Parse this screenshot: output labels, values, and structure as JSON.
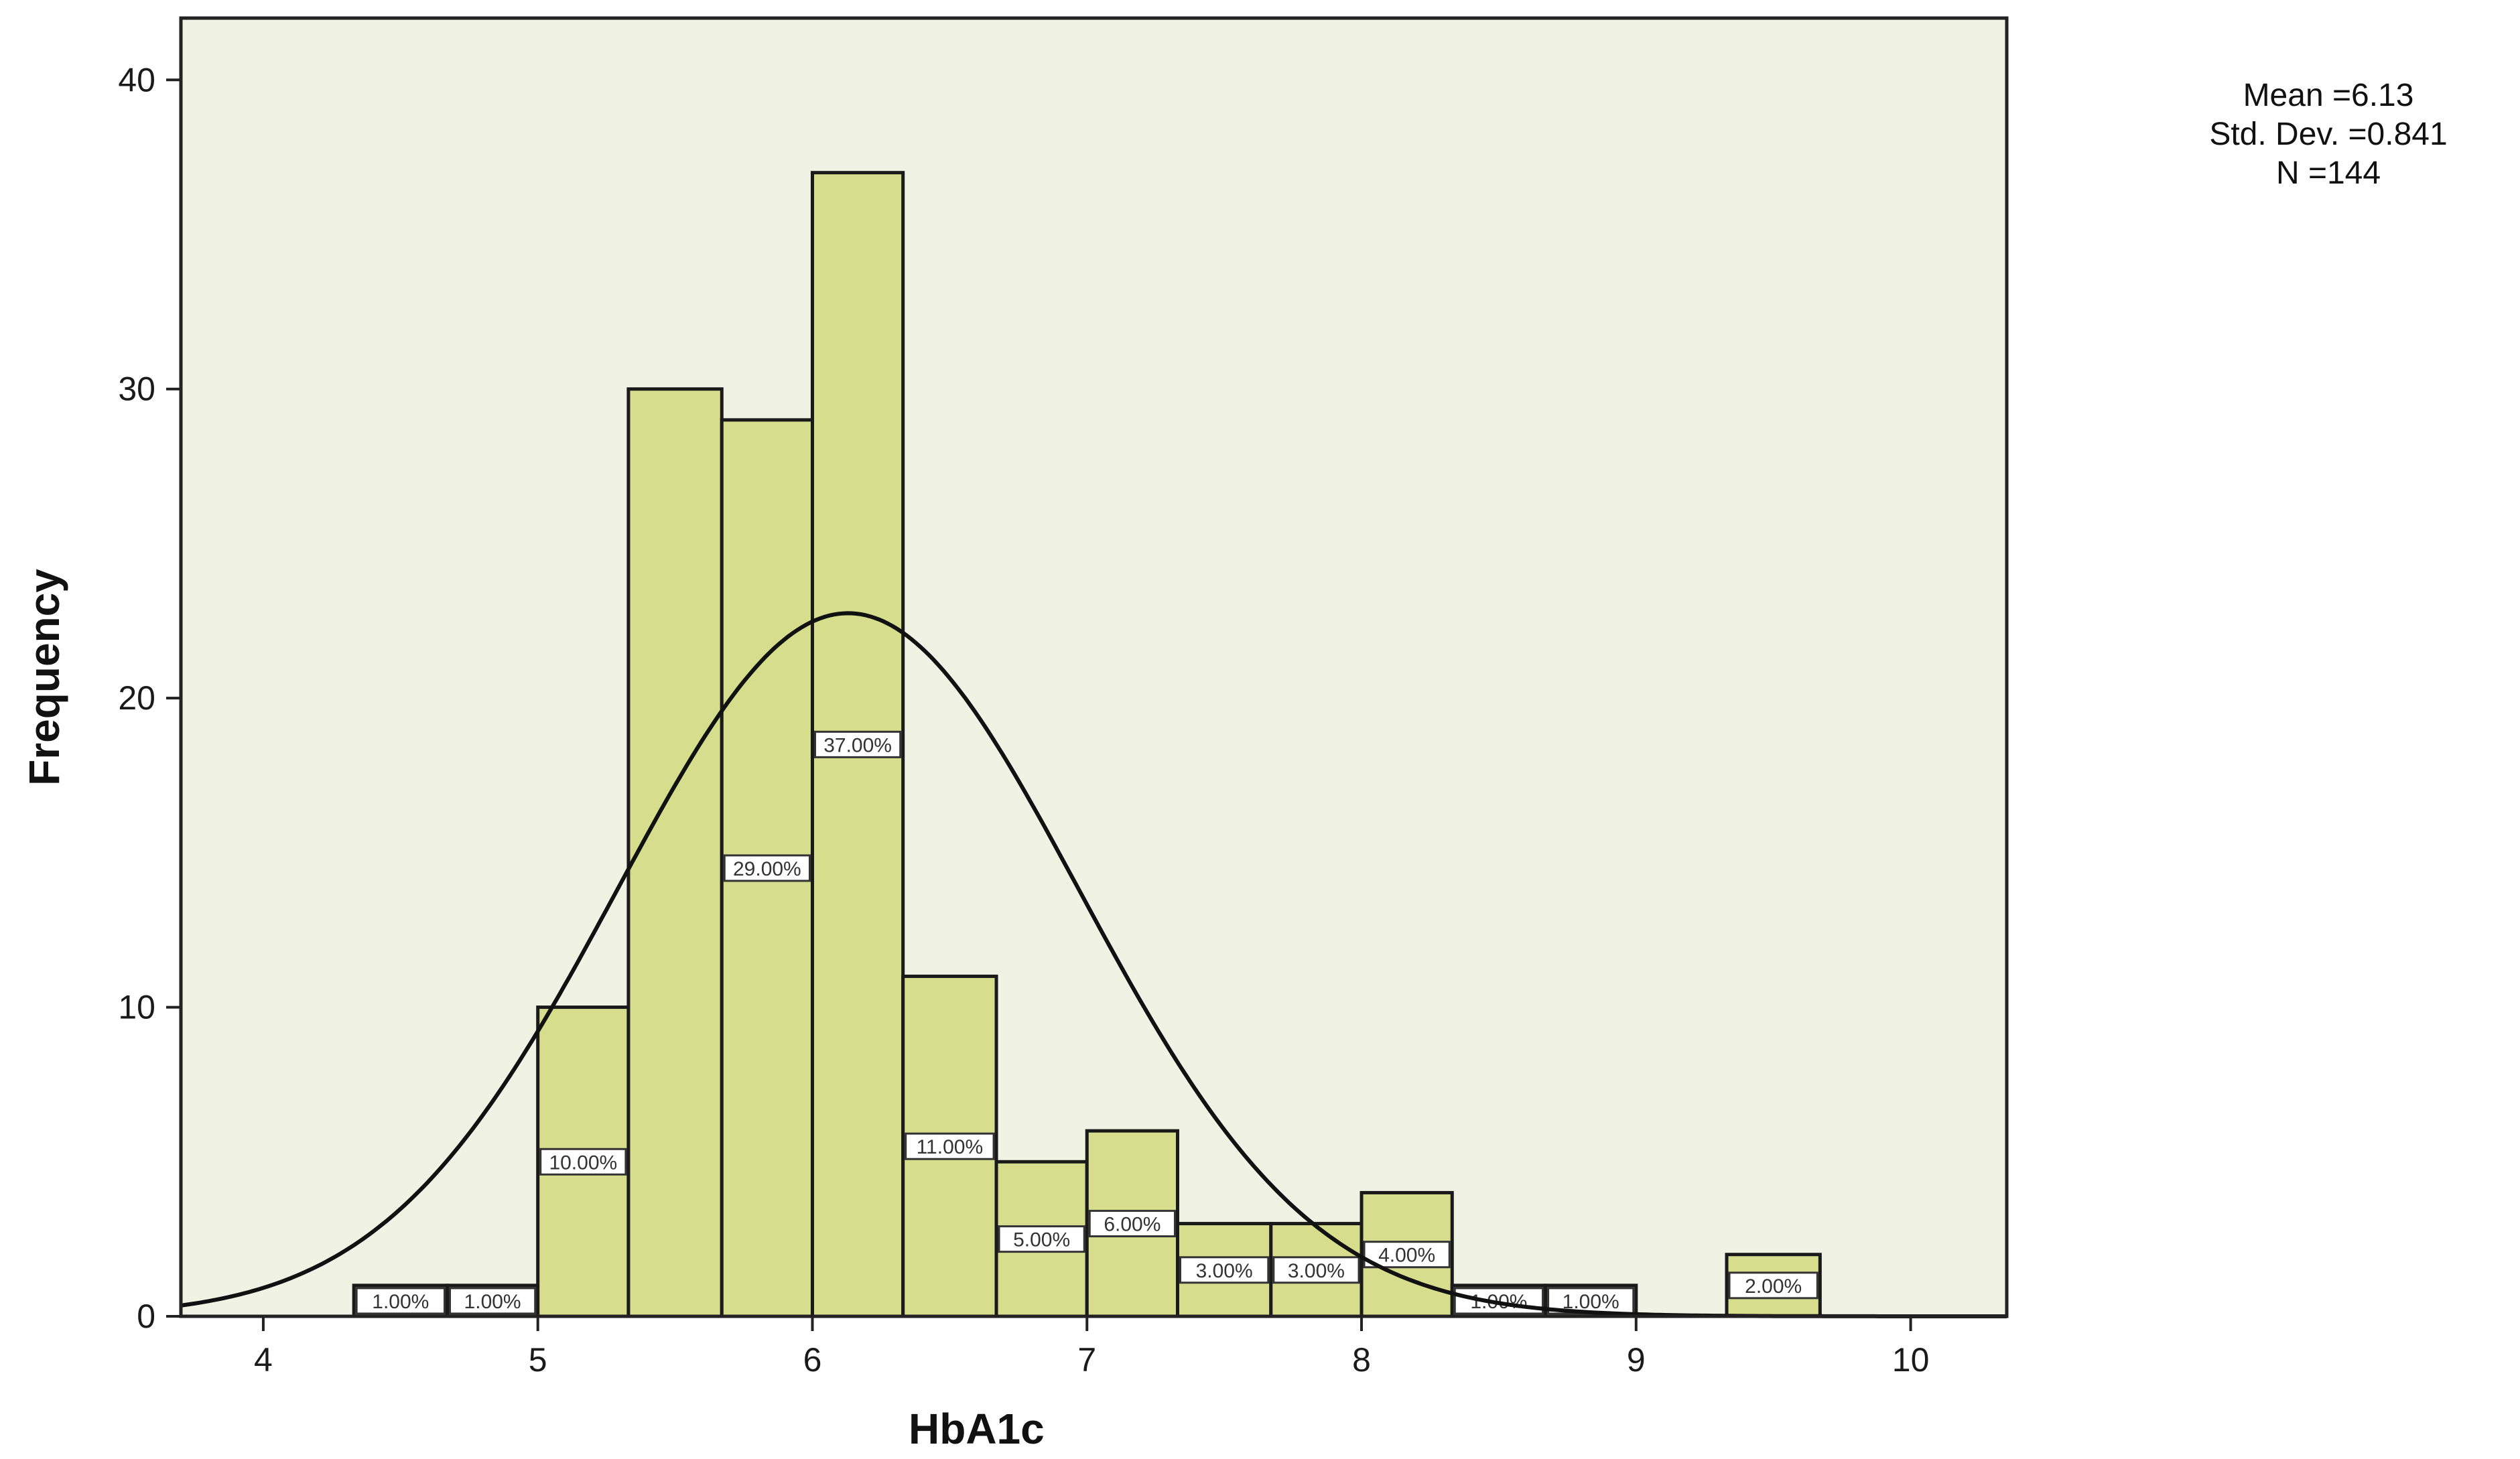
{
  "chart_data": {
    "type": "bar",
    "subtype": "histogram",
    "xlabel": "HbA1c",
    "ylabel": "Frequency",
    "xlim": [
      3.7,
      10.35
    ],
    "ylim": [
      0,
      42
    ],
    "x_ticks": [
      4,
      5,
      6,
      7,
      8,
      9,
      10
    ],
    "y_ticks": [
      0,
      10,
      20,
      30,
      40
    ],
    "grid": false,
    "bins": [
      {
        "start": 4.33,
        "end": 4.67,
        "value": 1,
        "label": "1.00%"
      },
      {
        "start": 4.67,
        "end": 5.0,
        "value": 1,
        "label": "1.00%"
      },
      {
        "start": 5.0,
        "end": 5.33,
        "value": 10,
        "label": "10.00%"
      },
      {
        "start": 5.33,
        "end": 5.67,
        "value": 30,
        "label": ""
      },
      {
        "start": 5.67,
        "end": 6.0,
        "value": 29,
        "label": "29.00%"
      },
      {
        "start": 6.0,
        "end": 6.33,
        "value": 37,
        "label": "37.00%"
      },
      {
        "start": 6.33,
        "end": 6.67,
        "value": 11,
        "label": "11.00%"
      },
      {
        "start": 6.67,
        "end": 7.0,
        "value": 5,
        "label": "5.00%"
      },
      {
        "start": 7.0,
        "end": 7.33,
        "value": 6,
        "label": "6.00%"
      },
      {
        "start": 7.33,
        "end": 7.67,
        "value": 3,
        "label": "3.00%"
      },
      {
        "start": 7.67,
        "end": 8.0,
        "value": 3,
        "label": "3.00%"
      },
      {
        "start": 8.0,
        "end": 8.33,
        "value": 4,
        "label": "4.00%"
      },
      {
        "start": 8.33,
        "end": 8.67,
        "value": 1,
        "label": "1.00%"
      },
      {
        "start": 8.67,
        "end": 9.0,
        "value": 1,
        "label": "1.00%"
      },
      {
        "start": 9.33,
        "end": 9.67,
        "value": 2,
        "label": "2.00%"
      }
    ],
    "normal_curve": {
      "mean": 6.13,
      "std": 0.841,
      "n": 144,
      "bin_width": 0.333
    },
    "stats": [
      "Mean =6.13",
      "Std. Dev. =0.841",
      "N =144"
    ],
    "legend": "top-right",
    "colors": {
      "bar_fill": "#d6de8e",
      "bar_stroke": "#1a1a1a",
      "plot_bg": "#f0f2e4",
      "curve": "#111111"
    }
  }
}
